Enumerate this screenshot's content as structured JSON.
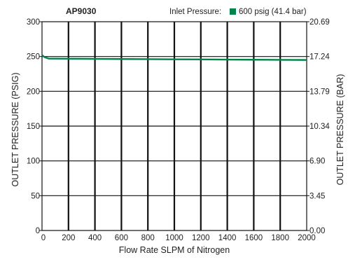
{
  "chart_data": {
    "type": "line",
    "title": "AP9030",
    "legend_title": "Inlet Pressure:",
    "legend_placement": "top-right",
    "xlabel": "Flow Rate SLPM of Nitrogen",
    "ylabel": "OUTLET PRESSURE (PSIG)",
    "y2label": "OUTLET PRESSURE (BAR)",
    "xlim": [
      0,
      2000
    ],
    "ylim": [
      0,
      300
    ],
    "grid": true,
    "x_ticks": [
      0,
      200,
      400,
      600,
      800,
      1000,
      1200,
      1400,
      1600,
      1800,
      2000
    ],
    "x_tick_labels": [
      "0",
      "200",
      "400",
      "600",
      "800",
      "1000",
      "1200",
      "1400",
      "1600",
      "1800",
      "2000"
    ],
    "y_ticks": [
      0,
      50,
      100,
      150,
      200,
      250,
      300
    ],
    "y_tick_labels": [
      "0",
      "50",
      "100",
      "150",
      "200",
      "250",
      "300"
    ],
    "y2_ticks": [
      0,
      50,
      100,
      150,
      200,
      250,
      300
    ],
    "y2_tick_labels": [
      "0.00",
      "3.45",
      "6.90",
      "10.34",
      "13.79",
      "17.24",
      "20.69"
    ],
    "series": [
      {
        "name": "600 psig (41.4 bar)",
        "color": "#00844a",
        "x": [
          0,
          20,
          50,
          100,
          200,
          400,
          600,
          800,
          1000,
          1200,
          1400,
          1600,
          1800,
          2000
        ],
        "y": [
          252,
          249,
          247,
          247,
          246.8,
          246.6,
          246.4,
          246.2,
          246,
          245.8,
          245.6,
          245.4,
          245.2,
          245
        ]
      }
    ]
  }
}
